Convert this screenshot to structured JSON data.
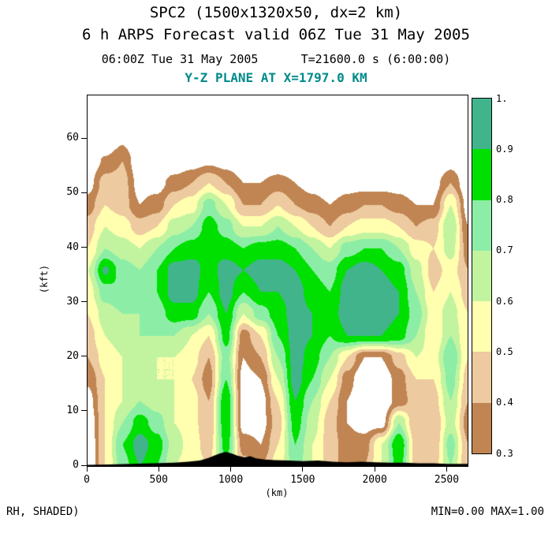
{
  "header": {
    "title_line1": "SPC2 (1500x1320x50, dx=2 km)",
    "title_line2": "6 h ARPS Forecast valid 06Z Tue 31 May 2005",
    "time_line": "06:00Z Tue 31 May 2005      T=21600.0 s (6:00:00)",
    "plane_label": "Y-Z PLANE AT X=1797.0 KM",
    "plane_label_color": "#008b8b"
  },
  "footer": {
    "left": "RH, SHADED)",
    "right": "MIN=0.00 MAX=1.00"
  },
  "chart_data": {
    "type": "heatmap",
    "subtype": "filled-contour-vertical-cross-section",
    "title": "SPC2 (1500x1320x50, dx=2 km)",
    "subtitle": "6 h ARPS Forecast valid 06Z Tue 31 May 2005",
    "field_name": "RH, SHADED)",
    "plane": "Y-Z PLANE AT X=1797.0 KM",
    "xlabel": "(km)",
    "ylabel": "(kft)",
    "xlim": [
      0,
      2640
    ],
    "ylim": [
      0,
      68
    ],
    "x_ticks": [
      0,
      500,
      1000,
      1500,
      2000,
      2500
    ],
    "y_ticks": [
      0,
      10,
      20,
      30,
      40,
      50,
      60
    ],
    "min": 0.0,
    "max": 1.0,
    "levels": [
      0.3,
      0.4,
      0.5,
      0.6,
      0.7,
      0.8,
      0.9,
      1.0
    ],
    "colorbar_labels": [
      "0.3",
      "0.4",
      "0.5",
      "0.6",
      "0.7",
      "0.8",
      "0.9",
      "1."
    ],
    "band_colors": [
      "#c08552",
      "#edca9f",
      "#ffffaf",
      "#c2f4a0",
      "#8ceea6",
      "#00e000",
      "#42b48c"
    ],
    "below_min_color": "#ffffff",
    "grid_x": [
      0,
      120,
      240,
      360,
      480,
      600,
      720,
      840,
      960,
      1080,
      1200,
      1320,
      1440,
      1560,
      1680,
      1800,
      1920,
      2040,
      2160,
      2280,
      2400,
      2520,
      2640
    ],
    "grid_y": [
      0,
      4,
      8,
      12,
      16,
      20,
      24,
      28,
      32,
      36,
      40,
      44,
      48,
      52,
      56,
      60,
      64,
      68
    ],
    "rh_values": [
      [
        0.18,
        0.5,
        0.75,
        0.9,
        0.8,
        0.6,
        0.55,
        0.5,
        0.75,
        0.45,
        0.4,
        0.55,
        0.75,
        0.6,
        0.45,
        0.35,
        0.4,
        0.6,
        0.85,
        0.45,
        0.45,
        0.7,
        0.4
      ],
      [
        0.18,
        0.5,
        0.8,
        0.95,
        0.85,
        0.65,
        0.55,
        0.45,
        0.85,
        0.35,
        0.3,
        0.5,
        0.8,
        0.6,
        0.45,
        0.35,
        0.35,
        0.6,
        0.9,
        0.45,
        0.4,
        0.75,
        0.4
      ],
      [
        0.2,
        0.5,
        0.7,
        0.85,
        0.75,
        0.6,
        0.55,
        0.4,
        0.9,
        0.25,
        0.25,
        0.45,
        0.85,
        0.65,
        0.45,
        0.3,
        0.25,
        0.25,
        0.7,
        0.4,
        0.4,
        0.65,
        0.35
      ],
      [
        0.25,
        0.5,
        0.6,
        0.7,
        0.65,
        0.6,
        0.55,
        0.4,
        0.9,
        0.25,
        0.25,
        0.5,
        0.9,
        0.7,
        0.5,
        0.3,
        0.2,
        0.2,
        0.35,
        0.45,
        0.45,
        0.7,
        0.4
      ],
      [
        0.32,
        0.5,
        0.6,
        0.65,
        0.6,
        0.6,
        0.5,
        0.35,
        0.8,
        0.25,
        0.3,
        0.6,
        0.95,
        0.8,
        0.6,
        0.35,
        0.2,
        0.22,
        0.35,
        0.5,
        0.5,
        0.75,
        0.45
      ],
      [
        0.4,
        0.55,
        0.6,
        0.65,
        0.6,
        0.6,
        0.55,
        0.4,
        0.75,
        0.3,
        0.4,
        0.7,
        0.95,
        0.85,
        0.7,
        0.5,
        0.3,
        0.3,
        0.45,
        0.6,
        0.55,
        0.8,
        0.5
      ],
      [
        0.45,
        0.6,
        0.65,
        0.7,
        0.7,
        0.7,
        0.6,
        0.5,
        0.85,
        0.35,
        0.5,
        0.8,
        0.95,
        0.9,
        0.8,
        0.9,
        0.9,
        0.9,
        0.85,
        0.7,
        0.5,
        0.7,
        0.5
      ],
      [
        0.5,
        0.65,
        0.7,
        0.7,
        0.75,
        0.85,
        0.85,
        0.7,
        0.9,
        0.6,
        0.75,
        0.85,
        0.95,
        0.9,
        0.85,
        0.95,
        0.95,
        0.95,
        0.9,
        0.75,
        0.55,
        0.65,
        0.5
      ],
      [
        0.55,
        0.75,
        0.8,
        0.75,
        0.8,
        0.95,
        0.95,
        0.8,
        0.95,
        0.8,
        0.9,
        0.9,
        0.95,
        0.85,
        0.8,
        0.95,
        0.95,
        0.95,
        0.9,
        0.7,
        0.5,
        0.6,
        0.45
      ],
      [
        0.6,
        0.92,
        0.75,
        0.7,
        0.8,
        0.95,
        0.95,
        0.85,
        0.95,
        0.9,
        0.95,
        0.95,
        0.9,
        0.8,
        0.75,
        0.9,
        0.95,
        0.9,
        0.85,
        0.65,
        0.45,
        0.55,
        0.4
      ],
      [
        0.5,
        0.7,
        0.65,
        0.6,
        0.7,
        0.8,
        0.85,
        0.9,
        0.85,
        0.8,
        0.85,
        0.85,
        0.8,
        0.7,
        0.6,
        0.75,
        0.8,
        0.8,
        0.7,
        0.55,
        0.5,
        0.65,
        0.35
      ],
      [
        0.45,
        0.6,
        0.55,
        0.45,
        0.5,
        0.65,
        0.7,
        0.85,
        0.75,
        0.6,
        0.6,
        0.7,
        0.6,
        0.5,
        0.4,
        0.5,
        0.55,
        0.55,
        0.5,
        0.4,
        0.45,
        0.7,
        0.3
      ],
      [
        0.35,
        0.5,
        0.45,
        0.3,
        0.35,
        0.5,
        0.55,
        0.75,
        0.6,
        0.4,
        0.4,
        0.5,
        0.4,
        0.35,
        0.3,
        0.35,
        0.4,
        0.4,
        0.35,
        0.3,
        0.3,
        0.6,
        0.25
      ],
      [
        0.25,
        0.45,
        0.45,
        0.25,
        0.25,
        0.35,
        0.4,
        0.5,
        0.4,
        0.3,
        0.3,
        0.35,
        0.3,
        0.25,
        0.2,
        0.25,
        0.25,
        0.25,
        0.25,
        0.2,
        0.25,
        0.4,
        0.2
      ],
      [
        0.2,
        0.32,
        0.4,
        0.2,
        0.2,
        0.2,
        0.25,
        0.28,
        0.25,
        0.2,
        0.2,
        0.2,
        0.2,
        0.2,
        0.15,
        0.15,
        0.15,
        0.15,
        0.15,
        0.15,
        0.15,
        0.25,
        0.15
      ],
      [
        0.15,
        0.18,
        0.28,
        0.15,
        0.15,
        0.15,
        0.15,
        0.18,
        0.15,
        0.15,
        0.15,
        0.15,
        0.15,
        0.15,
        0.15,
        0.15,
        0.15,
        0.15,
        0.15,
        0.15,
        0.15,
        0.15,
        0.15
      ],
      [
        0.15,
        0.15,
        0.15,
        0.15,
        0.15,
        0.15,
        0.15,
        0.15,
        0.15,
        0.15,
        0.15,
        0.15,
        0.15,
        0.15,
        0.15,
        0.15,
        0.15,
        0.15,
        0.15,
        0.15,
        0.15,
        0.15,
        0.15
      ],
      [
        0.1,
        0.1,
        0.1,
        0.1,
        0.1,
        0.1,
        0.1,
        0.1,
        0.1,
        0.1,
        0.1,
        0.1,
        0.1,
        0.1,
        0.1,
        0.1,
        0.1,
        0.1,
        0.1,
        0.1,
        0.1,
        0.1,
        0.1
      ]
    ],
    "terrain": {
      "color": "#000000",
      "x": [
        0,
        150,
        300,
        450,
        600,
        700,
        780,
        840,
        880,
        920,
        960,
        1000,
        1040,
        1090,
        1130,
        1170,
        1230,
        1300,
        1400,
        1500,
        1600,
        1700,
        1800,
        1900,
        2000,
        2100,
        2200,
        2300,
        2400,
        2500,
        2640
      ],
      "height_kft": [
        0.2,
        0.3,
        0.4,
        0.5,
        0.6,
        0.8,
        1.0,
        1.5,
        1.9,
        2.3,
        2.6,
        2.3,
        1.9,
        1.6,
        1.8,
        1.4,
        1.2,
        1.1,
        1.0,
        0.9,
        1.0,
        0.8,
        0.7,
        0.8,
        0.7,
        0.6,
        0.6,
        0.5,
        0.5,
        0.4,
        0.4
      ]
    }
  }
}
